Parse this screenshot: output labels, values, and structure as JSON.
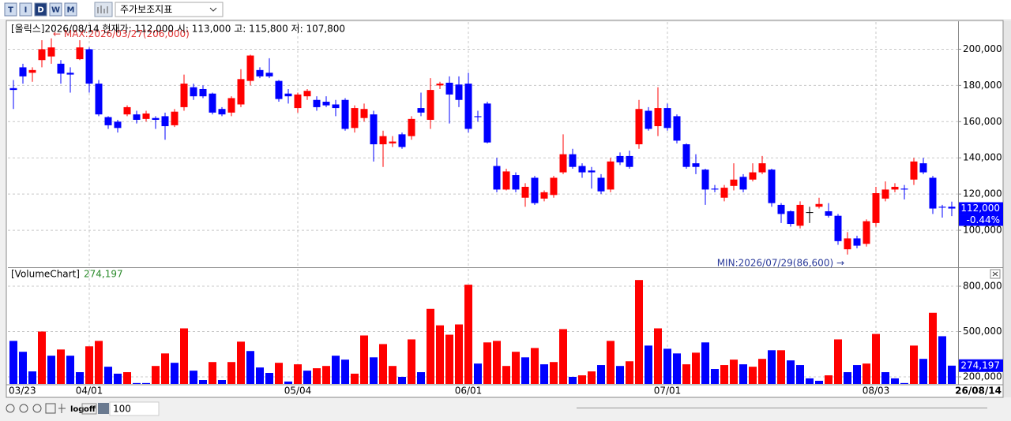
{
  "toolbar": {
    "buttons": [
      "T",
      "I",
      "D",
      "W",
      "M"
    ],
    "indicator_select": "주가보조지표"
  },
  "chart_data": [
    {
      "type": "candlestick",
      "title": "[올릭스]2026/08/14 현재가: 112,000 시: 113,000 고: 115,800 저: 107,800",
      "open": [
        178500,
        190000,
        187000,
        194000,
        196000,
        192000,
        187000,
        194500,
        200000,
        181000,
        162500,
        160000,
        164000,
        164000,
        161500,
        162000,
        163000,
        158000,
        168000,
        179000,
        178000,
        175500,
        167000,
        165000,
        169500,
        182500,
        188500,
        187000,
        182500,
        175500,
        167500,
        174000,
        172000,
        171000,
        169500,
        172000,
        156500,
        162000,
        164000,
        147500,
        148000,
        153000,
        152000,
        167500,
        161000,
        180000,
        181500,
        180500,
        181000,
        163000,
        170000,
        135500,
        122500,
        130500,
        118000,
        129000,
        117500,
        119500,
        132000,
        142000,
        135500,
        133000,
        129000,
        122500,
        141000,
        141000,
        147500,
        166000,
        157500,
        167500,
        163000,
        147500,
        137000,
        133500,
        123000,
        118000,
        124500,
        129500,
        128000,
        132000,
        133500,
        114000,
        110500,
        102500,
        110000,
        113000,
        110500,
        108000,
        89500,
        95500,
        92500,
        104000,
        117500,
        122500,
        123000,
        128000,
        137000,
        129000,
        113000,
        113000
      ],
      "high": [
        183000,
        192000,
        190000,
        205000,
        206000,
        194000,
        190000,
        205000,
        201000,
        183000,
        163000,
        161000,
        169000,
        166000,
        166000,
        163000,
        165000,
        167000,
        186000,
        181000,
        180000,
        176000,
        168000,
        174000,
        189000,
        197000,
        190000,
        195000,
        183000,
        178000,
        176000,
        178000,
        174000,
        174000,
        172000,
        173000,
        169000,
        170000,
        166000,
        155000,
        152000,
        154000,
        163000,
        176000,
        184000,
        182000,
        185000,
        185000,
        187000,
        166000,
        171000,
        140000,
        134000,
        132000,
        126000,
        130000,
        122000,
        130000,
        153000,
        145000,
        137000,
        135000,
        131000,
        140000,
        143000,
        144000,
        172000,
        168000,
        179000,
        170000,
        164000,
        148000,
        142000,
        134000,
        125000,
        125000,
        137000,
        131000,
        137000,
        141000,
        134000,
        115000,
        111000,
        116000,
        113000,
        118000,
        115000,
        109000,
        99000,
        97000,
        106000,
        124000,
        127000,
        126000,
        125000,
        140000,
        140000,
        130000,
        114000,
        115800
      ],
      "low": [
        167000,
        181000,
        182000,
        190000,
        192000,
        181000,
        176000,
        194000,
        176000,
        163000,
        156000,
        154000,
        163000,
        159000,
        160000,
        156000,
        150000,
        157000,
        166000,
        172000,
        173000,
        164000,
        163000,
        163000,
        168000,
        180000,
        184000,
        184000,
        171000,
        170000,
        165000,
        172000,
        166000,
        168000,
        163000,
        155000,
        154000,
        160000,
        138000,
        135000,
        146000,
        145000,
        150000,
        163000,
        156000,
        178000,
        159000,
        168000,
        154000,
        160000,
        148000,
        121000,
        122000,
        121000,
        113000,
        114000,
        116000,
        118000,
        131000,
        134000,
        129000,
        123000,
        120000,
        121000,
        136000,
        134000,
        145000,
        155000,
        152000,
        155000,
        148000,
        134000,
        131000,
        114000,
        121000,
        116000,
        122000,
        121000,
        127000,
        131000,
        113000,
        104000,
        102000,
        101000,
        104000,
        112000,
        107000,
        92000,
        86600,
        90000,
        91000,
        102000,
        116000,
        121000,
        117000,
        125000,
        131000,
        109000,
        107000,
        107800
      ],
      "close": [
        177500,
        185000,
        188500,
        200000,
        201000,
        186500,
        186000,
        201000,
        181000,
        164000,
        158000,
        156500,
        168000,
        161000,
        164500,
        161000,
        157500,
        165500,
        181000,
        174000,
        174000,
        165000,
        164000,
        173000,
        183500,
        196500,
        185000,
        185000,
        172500,
        174000,
        175000,
        177000,
        168000,
        169000,
        167500,
        156000,
        167500,
        167000,
        147500,
        152000,
        149000,
        146000,
        161500,
        165000,
        177500,
        181000,
        175000,
        172000,
        156000,
        162500,
        148500,
        122500,
        132500,
        122500,
        124000,
        115000,
        121000,
        129000,
        142000,
        135000,
        132000,
        132000,
        121500,
        138000,
        137500,
        135000,
        167000,
        156000,
        167500,
        156500,
        149500,
        135000,
        135000,
        122500,
        122500,
        123500,
        128000,
        122500,
        132000,
        137000,
        115000,
        109000,
        103500,
        114000,
        110000,
        114500,
        108000,
        94000,
        95500,
        91500,
        105000,
        120500,
        122500,
        124000,
        122500,
        138000,
        132000,
        112000,
        112500,
        112000
      ],
      "up_color": "#ff0000",
      "down_color": "#0000ff",
      "flat_color": "#000000",
      "ylim": [
        80000,
        215000
      ],
      "yticks": [
        {
          "value": 100000,
          "label": "100,000"
        },
        {
          "value": 120000,
          "label": "120,000"
        },
        {
          "value": 140000,
          "label": "140,000"
        },
        {
          "value": 160000,
          "label": "160,000"
        },
        {
          "value": 180000,
          "label": "180,000"
        },
        {
          "value": 200000,
          "label": "200,000"
        }
      ],
      "grid": true,
      "max_label": "← MAX:2026/03/27(206,000)",
      "min_label": "MIN:2026/07/29(86,600) →",
      "last_price": {
        "value": 112000,
        "label": "112,000"
      },
      "change": {
        "value": -0.44,
        "label": "-0.44%"
      }
    },
    {
      "type": "bar",
      "title": "[VolumeChart]",
      "categories": [
        "03/23",
        null,
        null,
        null,
        null,
        null,
        null,
        null,
        "04/01",
        null,
        null,
        null,
        null,
        null,
        null,
        null,
        null,
        null,
        null,
        null,
        null,
        null,
        null,
        null,
        null,
        null,
        null,
        null,
        null,
        null,
        "05/04",
        null,
        null,
        null,
        null,
        null,
        null,
        null,
        null,
        null,
        null,
        null,
        null,
        null,
        null,
        null,
        null,
        null,
        "06/01",
        null,
        null,
        null,
        null,
        null,
        null,
        null,
        null,
        null,
        null,
        null,
        null,
        null,
        null,
        null,
        null,
        null,
        null,
        null,
        null,
        "07/01",
        null,
        null,
        null,
        null,
        null,
        null,
        null,
        null,
        null,
        null,
        null,
        null,
        null,
        null,
        null,
        null,
        null,
        null,
        null,
        null,
        null,
        "08/03",
        null,
        null,
        null,
        null,
        null,
        null,
        null,
        "26/08/14"
      ],
      "values": [
        438000,
        366000,
        236000,
        500000,
        340000,
        381000,
        340000,
        231000,
        402000,
        438000,
        267000,
        221000,
        231000,
        159000,
        159000,
        272000,
        355000,
        293000,
        521000,
        241000,
        179000,
        298000,
        179000,
        298000,
        433000,
        371000,
        262000,
        226000,
        293000,
        169000,
        283000,
        241000,
        257000,
        272000,
        340000,
        314000,
        221000,
        474000,
        329000,
        417000,
        272000,
        200000,
        448000,
        231000,
        650000,
        541000,
        479000,
        547000,
        810000,
        288000,
        428000,
        438000,
        272000,
        366000,
        329000,
        391000,
        283000,
        298000,
        516000,
        200000,
        210000,
        236000,
        278000,
        438000,
        272000,
        303000,
        841000,
        407000,
        521000,
        386000,
        355000,
        283000,
        360000,
        428000,
        252000,
        278000,
        314000,
        283000,
        267000,
        319000,
        376000,
        376000,
        309000,
        278000,
        190000,
        174000,
        210000,
        448000,
        231000,
        278000,
        288000,
        484000,
        231000,
        190000,
        159000,
        407000,
        319000,
        624000,
        469000,
        274197
      ],
      "colors": [
        "blue",
        "blue",
        "blue",
        "red",
        "blue",
        "red",
        "blue",
        "blue",
        "red",
        "red",
        "blue",
        "blue",
        "red",
        "blue",
        "blue",
        "red",
        "red",
        "blue",
        "red",
        "blue",
        "blue",
        "red",
        "blue",
        "red",
        "red",
        "blue",
        "blue",
        "blue",
        "red",
        "blue",
        "red",
        "blue",
        "red",
        "red",
        "blue",
        "blue",
        "red",
        "red",
        "blue",
        "red",
        "red",
        "blue",
        "red",
        "blue",
        "red",
        "red",
        "red",
        "red",
        "red",
        "blue",
        "red",
        "red",
        "red",
        "red",
        "blue",
        "red",
        "blue",
        "red",
        "red",
        "blue",
        "red",
        "red",
        "blue",
        "red",
        "blue",
        "red",
        "red",
        "blue",
        "red",
        "blue",
        "blue",
        "red",
        "red",
        "blue",
        "blue",
        "red",
        "red",
        "blue",
        "red",
        "red",
        "blue",
        "red",
        "blue",
        "blue",
        "blue",
        "blue",
        "red",
        "red",
        "blue",
        "blue",
        "red",
        "red",
        "blue",
        "blue",
        "blue",
        "red",
        "blue",
        "red",
        "blue",
        "blue"
      ],
      "ylim": [
        153000,
        915000
      ],
      "yticks": [
        {
          "value": 200000,
          "label": "200,000"
        },
        {
          "value": 500000,
          "label": "500,000"
        },
        {
          "value": 800000,
          "label": "800,000"
        }
      ],
      "grid": true,
      "last_value": {
        "value": 274197,
        "label": "274,197"
      }
    }
  ],
  "footer": {
    "buttons": [
      "log",
      "off"
    ],
    "zoom": "100"
  }
}
